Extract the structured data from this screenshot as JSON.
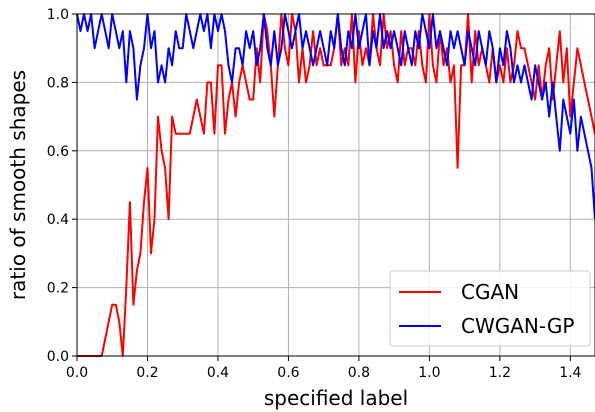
{
  "chart_data": {
    "type": "line",
    "title": "",
    "xlabel": "specified label",
    "ylabel": "ratio of smooth shapes",
    "xlim": [
      0.0,
      1.47
    ],
    "ylim": [
      0.0,
      1.0
    ],
    "xticks": [
      0.0,
      0.2,
      0.4,
      0.6,
      0.8,
      1.0,
      1.2,
      1.4
    ],
    "xtick_labels": [
      "0.0",
      "0.2",
      "0.4",
      "0.6",
      "0.8",
      "1.0",
      "1.2",
      "1.4"
    ],
    "yticks": [
      0.0,
      0.2,
      0.4,
      0.6,
      0.8,
      1.0
    ],
    "ytick_labels": [
      "0.0",
      "0.2",
      "0.4",
      "0.6",
      "0.8",
      "1.0"
    ],
    "grid": true,
    "legend_position": "bottom-right",
    "series": [
      {
        "name": "CGAN",
        "color": "#ff0000",
        "points": [
          [
            0.0,
            0.0
          ],
          [
            0.02,
            0.0
          ],
          [
            0.04,
            0.0
          ],
          [
            0.06,
            0.0
          ],
          [
            0.07,
            0.0
          ],
          [
            0.09,
            0.1
          ],
          [
            0.1,
            0.15
          ],
          [
            0.11,
            0.15
          ],
          [
            0.12,
            0.1
          ],
          [
            0.13,
            0.0
          ],
          [
            0.14,
            0.2
          ],
          [
            0.15,
            0.45
          ],
          [
            0.16,
            0.15
          ],
          [
            0.17,
            0.25
          ],
          [
            0.18,
            0.3
          ],
          [
            0.19,
            0.45
          ],
          [
            0.2,
            0.55
          ],
          [
            0.21,
            0.3
          ],
          [
            0.22,
            0.4
          ],
          [
            0.23,
            0.7
          ],
          [
            0.24,
            0.6
          ],
          [
            0.25,
            0.55
          ],
          [
            0.26,
            0.4
          ],
          [
            0.27,
            0.7
          ],
          [
            0.28,
            0.65
          ],
          [
            0.3,
            0.65
          ],
          [
            0.32,
            0.65
          ],
          [
            0.34,
            0.75
          ],
          [
            0.36,
            0.65
          ],
          [
            0.37,
            0.8
          ],
          [
            0.38,
            0.8
          ],
          [
            0.39,
            0.65
          ],
          [
            0.4,
            0.85
          ],
          [
            0.41,
            0.85
          ],
          [
            0.42,
            0.65
          ],
          [
            0.43,
            0.75
          ],
          [
            0.44,
            0.8
          ],
          [
            0.45,
            0.7
          ],
          [
            0.46,
            0.8
          ],
          [
            0.47,
            0.85
          ],
          [
            0.48,
            0.8
          ],
          [
            0.49,
            0.75
          ],
          [
            0.5,
            0.75
          ],
          [
            0.51,
            0.9
          ],
          [
            0.52,
            0.8
          ],
          [
            0.53,
            1.0
          ],
          [
            0.54,
            0.95
          ],
          [
            0.55,
            0.85
          ],
          [
            0.56,
            0.7
          ],
          [
            0.57,
            0.85
          ],
          [
            0.58,
            1.0
          ],
          [
            0.59,
            0.9
          ],
          [
            0.6,
            0.85
          ],
          [
            0.61,
            1.0
          ],
          [
            0.62,
            0.95
          ],
          [
            0.63,
            0.8
          ],
          [
            0.64,
            0.9
          ],
          [
            0.65,
            0.8
          ],
          [
            0.66,
            0.85
          ],
          [
            0.67,
            0.95
          ],
          [
            0.68,
            0.85
          ],
          [
            0.69,
            0.9
          ],
          [
            0.7,
            0.85
          ],
          [
            0.71,
            0.85
          ],
          [
            0.72,
            0.85
          ],
          [
            0.73,
            0.9
          ],
          [
            0.74,
            1.0
          ],
          [
            0.75,
            0.85
          ],
          [
            0.76,
            0.9
          ],
          [
            0.77,
            0.85
          ],
          [
            0.78,
            1.0
          ],
          [
            0.79,
            0.8
          ],
          [
            0.8,
            0.95
          ],
          [
            0.81,
            0.85
          ],
          [
            0.82,
            0.9
          ],
          [
            0.83,
            0.85
          ],
          [
            0.84,
            1.0
          ],
          [
            0.85,
            0.9
          ],
          [
            0.86,
            0.85
          ],
          [
            0.87,
            1.0
          ],
          [
            0.88,
            0.9
          ],
          [
            0.89,
            0.95
          ],
          [
            0.9,
            0.85
          ],
          [
            0.91,
            0.8
          ],
          [
            0.92,
            0.95
          ],
          [
            0.93,
            0.85
          ],
          [
            0.94,
            0.9
          ],
          [
            0.95,
            0.9
          ],
          [
            0.96,
            0.85
          ],
          [
            0.97,
            0.95
          ],
          [
            0.98,
            0.85
          ],
          [
            0.99,
            0.8
          ],
          [
            1.0,
            1.0
          ],
          [
            1.01,
            0.85
          ],
          [
            1.02,
            0.8
          ],
          [
            1.03,
            0.95
          ],
          [
            1.04,
            0.85
          ],
          [
            1.05,
            0.9
          ],
          [
            1.06,
            0.8
          ],
          [
            1.07,
            0.85
          ],
          [
            1.08,
            0.55
          ],
          [
            1.09,
            0.85
          ],
          [
            1.1,
            0.85
          ],
          [
            1.11,
            1.0
          ],
          [
            1.12,
            0.8
          ],
          [
            1.13,
            0.95
          ],
          [
            1.14,
            0.85
          ],
          [
            1.15,
            0.9
          ],
          [
            1.16,
            0.85
          ],
          [
            1.17,
            0.8
          ],
          [
            1.18,
            0.9
          ],
          [
            1.19,
            0.8
          ],
          [
            1.2,
            0.85
          ],
          [
            1.21,
            0.8
          ],
          [
            1.22,
            0.9
          ],
          [
            1.23,
            0.8
          ],
          [
            1.24,
            0.85
          ],
          [
            1.25,
            0.95
          ],
          [
            1.26,
            0.9
          ],
          [
            1.27,
            0.9
          ],
          [
            1.28,
            0.85
          ],
          [
            1.29,
            0.8
          ],
          [
            1.3,
            0.75
          ],
          [
            1.31,
            0.85
          ],
          [
            1.32,
            0.75
          ],
          [
            1.33,
            0.85
          ],
          [
            1.34,
            0.9
          ],
          [
            1.35,
            0.75
          ],
          [
            1.36,
            0.85
          ],
          [
            1.37,
            0.95
          ],
          [
            1.38,
            0.8
          ],
          [
            1.39,
            0.9
          ],
          [
            1.4,
            0.7
          ],
          [
            1.41,
            0.8
          ],
          [
            1.42,
            0.9
          ],
          [
            1.43,
            0.85
          ],
          [
            1.44,
            0.8
          ],
          [
            1.45,
            0.75
          ],
          [
            1.46,
            0.7
          ],
          [
            1.47,
            0.65
          ]
        ]
      },
      {
        "name": "CWGAN-GP",
        "color": "#0000ff",
        "points": [
          [
            0.0,
            1.0
          ],
          [
            0.01,
            0.95
          ],
          [
            0.02,
            1.0
          ],
          [
            0.03,
            0.95
          ],
          [
            0.04,
            1.0
          ],
          [
            0.05,
            0.9
          ],
          [
            0.06,
            0.95
          ],
          [
            0.07,
            1.0
          ],
          [
            0.08,
            0.95
          ],
          [
            0.09,
            0.9
          ],
          [
            0.1,
            1.0
          ],
          [
            0.11,
            0.95
          ],
          [
            0.12,
            0.9
          ],
          [
            0.13,
            0.95
          ],
          [
            0.14,
            0.8
          ],
          [
            0.15,
            0.95
          ],
          [
            0.16,
            0.9
          ],
          [
            0.17,
            0.75
          ],
          [
            0.18,
            0.85
          ],
          [
            0.19,
            0.9
          ],
          [
            0.2,
            1.0
          ],
          [
            0.21,
            0.9
          ],
          [
            0.22,
            0.95
          ],
          [
            0.23,
            0.8
          ],
          [
            0.24,
            0.85
          ],
          [
            0.25,
            0.8
          ],
          [
            0.26,
            0.9
          ],
          [
            0.27,
            0.85
          ],
          [
            0.28,
            0.95
          ],
          [
            0.29,
            0.9
          ],
          [
            0.3,
            0.9
          ],
          [
            0.31,
            1.0
          ],
          [
            0.32,
            0.95
          ],
          [
            0.33,
            0.9
          ],
          [
            0.34,
            0.95
          ],
          [
            0.35,
            1.0
          ],
          [
            0.36,
            0.95
          ],
          [
            0.37,
            1.0
          ],
          [
            0.38,
            0.9
          ],
          [
            0.39,
            1.0
          ],
          [
            0.4,
            0.95
          ],
          [
            0.41,
            1.0
          ],
          [
            0.42,
            0.95
          ],
          [
            0.43,
            0.85
          ],
          [
            0.44,
            0.8
          ],
          [
            0.45,
            0.9
          ],
          [
            0.46,
            0.9
          ],
          [
            0.47,
            0.85
          ],
          [
            0.48,
            0.95
          ],
          [
            0.49,
            0.9
          ],
          [
            0.5,
            0.95
          ],
          [
            0.51,
            0.85
          ],
          [
            0.52,
            0.9
          ],
          [
            0.53,
            1.0
          ],
          [
            0.54,
            0.9
          ],
          [
            0.55,
            0.85
          ],
          [
            0.56,
            0.95
          ],
          [
            0.57,
            0.85
          ],
          [
            0.58,
            0.9
          ],
          [
            0.59,
            1.0
          ],
          [
            0.6,
            0.95
          ],
          [
            0.61,
            0.9
          ],
          [
            0.62,
            0.95
          ],
          [
            0.63,
            1.0
          ],
          [
            0.64,
            0.9
          ],
          [
            0.65,
            0.95
          ],
          [
            0.66,
            0.9
          ],
          [
            0.67,
            0.85
          ],
          [
            0.68,
            0.9
          ],
          [
            0.69,
            0.95
          ],
          [
            0.7,
            0.9
          ],
          [
            0.71,
            0.85
          ],
          [
            0.72,
            0.95
          ],
          [
            0.73,
            0.9
          ],
          [
            0.74,
            1.0
          ],
          [
            0.75,
            0.9
          ],
          [
            0.76,
            0.85
          ],
          [
            0.77,
            0.95
          ],
          [
            0.78,
            0.9
          ],
          [
            0.79,
            1.0
          ],
          [
            0.8,
            0.9
          ],
          [
            0.81,
            0.95
          ],
          [
            0.82,
            1.0
          ],
          [
            0.83,
            0.85
          ],
          [
            0.84,
            0.95
          ],
          [
            0.85,
            0.9
          ],
          [
            0.86,
            1.0
          ],
          [
            0.87,
            0.9
          ],
          [
            0.88,
            0.95
          ],
          [
            0.89,
            0.9
          ],
          [
            0.9,
            0.95
          ],
          [
            0.91,
            0.9
          ],
          [
            0.92,
            0.85
          ],
          [
            0.93,
            0.95
          ],
          [
            0.94,
            0.9
          ],
          [
            0.95,
            0.85
          ],
          [
            0.96,
            0.95
          ],
          [
            0.97,
            0.9
          ],
          [
            0.98,
            1.0
          ],
          [
            0.99,
            0.95
          ],
          [
            1.0,
            0.9
          ],
          [
            1.01,
            1.0
          ],
          [
            1.02,
            0.9
          ],
          [
            1.03,
            0.95
          ],
          [
            1.04,
            0.9
          ],
          [
            1.05,
            0.85
          ],
          [
            1.06,
            0.95
          ],
          [
            1.07,
            0.9
          ],
          [
            1.08,
            0.95
          ],
          [
            1.09,
            0.9
          ],
          [
            1.1,
            0.85
          ],
          [
            1.11,
            0.95
          ],
          [
            1.12,
            0.9
          ],
          [
            1.13,
            0.85
          ],
          [
            1.14,
            0.95
          ],
          [
            1.15,
            0.9
          ],
          [
            1.16,
            0.85
          ],
          [
            1.17,
            0.95
          ],
          [
            1.18,
            0.9
          ],
          [
            1.19,
            0.8
          ],
          [
            1.2,
            0.9
          ],
          [
            1.21,
            0.85
          ],
          [
            1.22,
            0.95
          ],
          [
            1.23,
            0.9
          ],
          [
            1.24,
            0.8
          ],
          [
            1.25,
            0.85
          ],
          [
            1.26,
            0.8
          ],
          [
            1.27,
            0.85
          ],
          [
            1.28,
            0.8
          ],
          [
            1.29,
            0.75
          ],
          [
            1.3,
            0.85
          ],
          [
            1.31,
            0.8
          ],
          [
            1.32,
            0.75
          ],
          [
            1.33,
            0.8
          ],
          [
            1.34,
            0.7
          ],
          [
            1.35,
            0.8
          ],
          [
            1.36,
            0.7
          ],
          [
            1.37,
            0.6
          ],
          [
            1.38,
            0.75
          ],
          [
            1.39,
            0.7
          ],
          [
            1.4,
            0.65
          ],
          [
            1.41,
            0.75
          ],
          [
            1.42,
            0.6
          ],
          [
            1.43,
            0.7
          ],
          [
            1.44,
            0.65
          ],
          [
            1.45,
            0.6
          ],
          [
            1.46,
            0.55
          ],
          [
            1.47,
            0.4
          ]
        ]
      }
    ]
  }
}
